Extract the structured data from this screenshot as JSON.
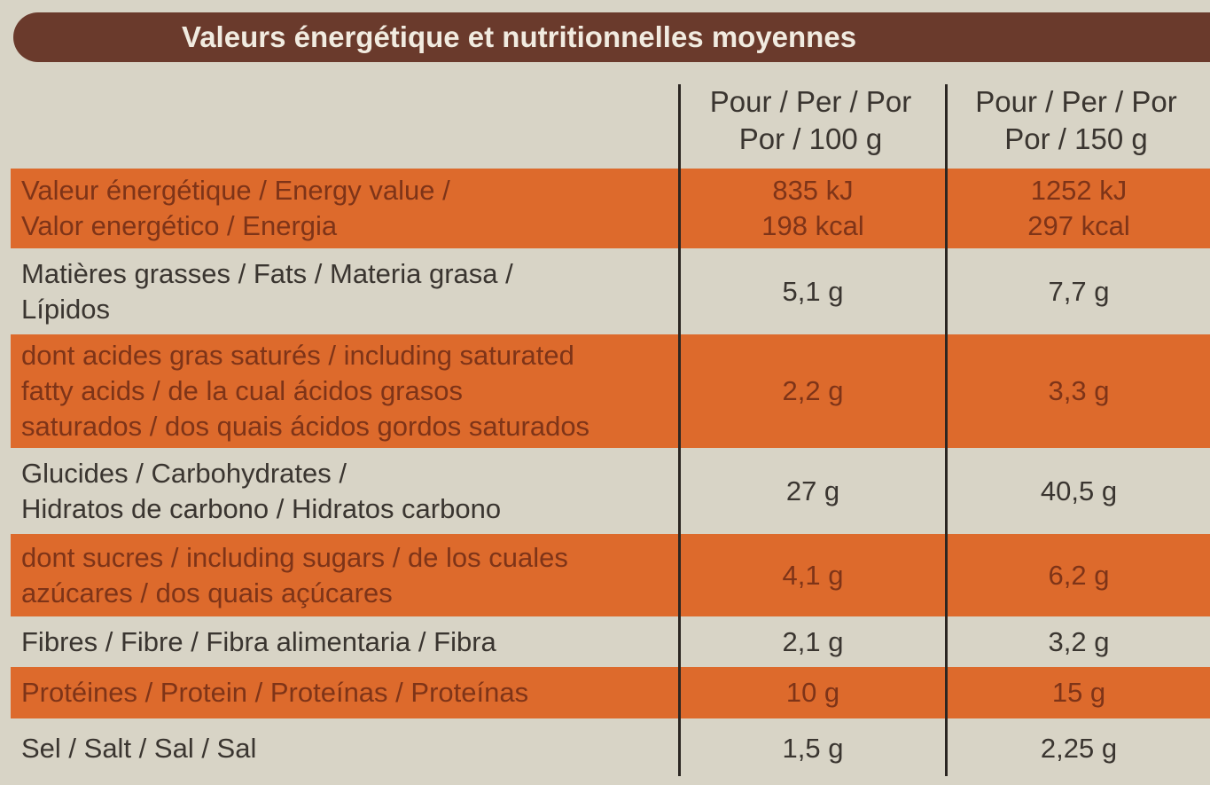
{
  "header": {
    "title": "Valeurs énergétique et nutritionnelles moyennes"
  },
  "table": {
    "columns": [
      [
        "Pour / Per / Por",
        "Por / 100 g"
      ],
      [
        "Pour / Per / Por",
        "Por / 150 g"
      ]
    ],
    "rows": [
      {
        "label": [
          "Valeur énergétique / Energy value /",
          "Valor energético / Energia"
        ],
        "per100": [
          "835 kJ",
          "198 kcal"
        ],
        "per150": [
          "1252 kJ",
          "297 kcal"
        ]
      },
      {
        "label": [
          "Matières grasses / Fats / Materia grasa /",
          "Lípidos"
        ],
        "per100": [
          "5,1 g"
        ],
        "per150": [
          "7,7 g"
        ]
      },
      {
        "label": [
          "dont acides gras saturés / including saturated",
          "fatty acids / de la cual ácidos grasos",
          "saturados / dos quais ácidos gordos saturados"
        ],
        "per100": [
          "2,2 g"
        ],
        "per150": [
          "3,3 g"
        ]
      },
      {
        "label": [
          "Glucides / Carbohydrates /",
          "Hidratos de carbono / Hidratos carbono"
        ],
        "per100": [
          "27 g"
        ],
        "per150": [
          "40,5 g"
        ]
      },
      {
        "label": [
          "dont sucres / including sugars / de los cuales",
          "azúcares / dos quais açúcares"
        ],
        "per100": [
          "4,1 g"
        ],
        "per150": [
          "6,2 g"
        ]
      },
      {
        "label": [
          "Fibres / Fibre / Fibra alimentaria / Fibra"
        ],
        "per100": [
          "2,1 g"
        ],
        "per150": [
          "3,2 g"
        ]
      },
      {
        "label": [
          "Protéines / Protein / Proteínas / Proteínas"
        ],
        "per100": [
          "10 g"
        ],
        "per150": [
          "15 g"
        ]
      },
      {
        "label": [
          "Sel / Salt / Sal / Sal"
        ],
        "per100": [
          "1,5 g"
        ],
        "per150": [
          "2,25 g"
        ]
      }
    ]
  }
}
